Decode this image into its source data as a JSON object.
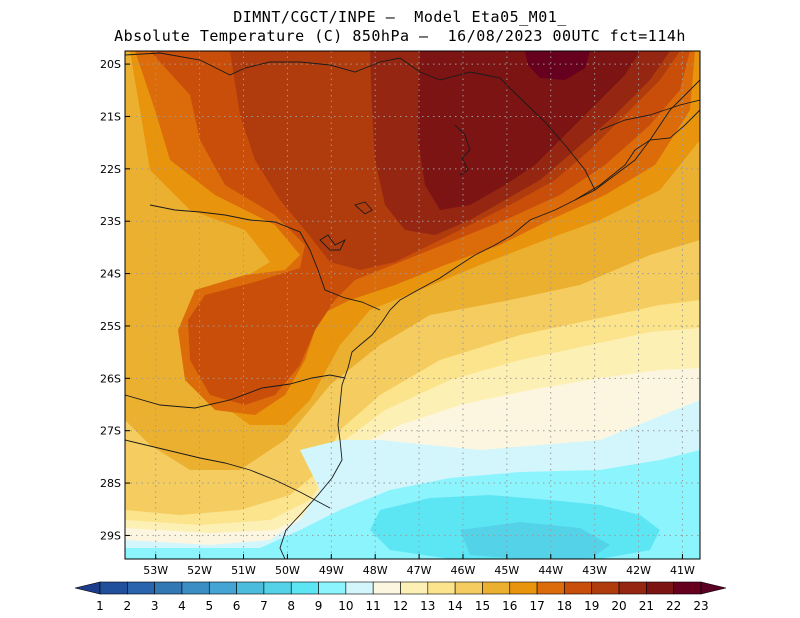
{
  "header": {
    "line1": "DIMNT/CGCT/INPE –  Model Eta05_M01_",
    "line2": "Absolute Temperature (C) 850hPa –  16/08/2023 00UTC fct=114h"
  },
  "chart_data": {
    "type": "heatmap",
    "variable": "Absolute Temperature (C) 850hPa",
    "model": "Eta05_M01_",
    "run": "16/08/2023 00UTC",
    "forecast": "fct=114h",
    "lon_range": [
      -53.7,
      -40.6
    ],
    "lat_range": [
      -29.45,
      -19.75
    ],
    "lon_ticks": [
      "53W",
      "52W",
      "51W",
      "50W",
      "49W",
      "48W",
      "47W",
      "46W",
      "45W",
      "44W",
      "43W",
      "42W",
      "41W"
    ],
    "lat_ticks": [
      "20S",
      "21S",
      "22S",
      "23S",
      "24S",
      "25S",
      "26S",
      "27S",
      "28S",
      "29S"
    ],
    "colorbar": {
      "levels": [
        "1",
        "2",
        "3",
        "4",
        "5",
        "6",
        "7",
        "8",
        "9",
        "10",
        "11",
        "12",
        "13",
        "14",
        "15",
        "16",
        "17",
        "18",
        "19",
        "20",
        "21",
        "22",
        "23"
      ],
      "colors": [
        "#1e3c8c",
        "#20509c",
        "#2a64ac",
        "#3278b4",
        "#3a8ec4",
        "#44a4d4",
        "#4cbcdc",
        "#54d2e8",
        "#5ce6f4",
        "#8cf4fc",
        "#d2f6fc",
        "#fcf6e0",
        "#fcf0b4",
        "#fce48c",
        "#f4cc60",
        "#ecb030",
        "#e8940c",
        "#dc6c0a",
        "#c84e0a",
        "#b03c0e",
        "#942612",
        "#7c1414",
        "#66001e",
        "#5a0022"
      ]
    },
    "grid": true
  },
  "colors": {
    "coast": "#1a1a1a",
    "grid": "#9a9a9a"
  }
}
